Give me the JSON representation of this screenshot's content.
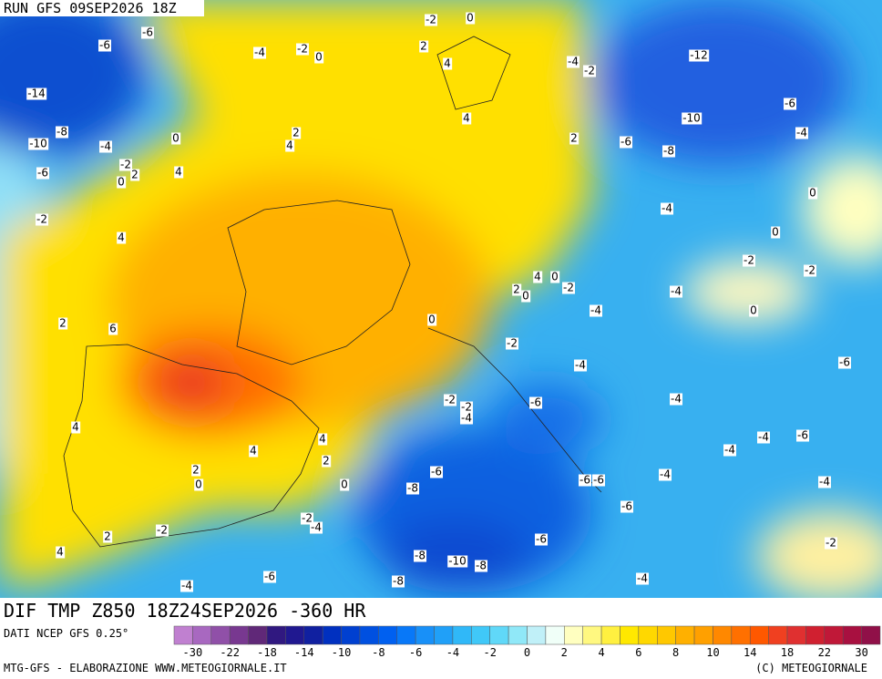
{
  "header": {
    "run": "RUN GFS 09SEP2026 18Z"
  },
  "map": {
    "labels": [
      -2,
      0,
      -6,
      -6,
      -4,
      -2,
      0,
      2,
      4,
      -4,
      -2,
      -12,
      -14,
      -10,
      -6,
      -4,
      -8,
      -10,
      -4,
      0,
      2,
      4,
      4,
      2,
      -6,
      -8,
      -2,
      2,
      0,
      4,
      -6,
      0,
      -4,
      -2,
      4,
      0,
      -2,
      -2,
      4,
      0,
      2,
      0,
      -2,
      -4,
      0,
      -4,
      2,
      0,
      6,
      -2,
      -6,
      -4,
      -2,
      -2,
      -4,
      -6,
      -4,
      4,
      4,
      -4,
      -4,
      -6,
      4,
      2,
      -6,
      2,
      0,
      0,
      -8,
      -6,
      -6,
      -4,
      -4,
      -6,
      -2,
      -4,
      -2,
      2,
      -6,
      -2,
      4,
      -8,
      -10,
      -8,
      -6,
      -4,
      -8,
      -4
    ]
  },
  "footer": {
    "field": "DIF TMP Z850 18Z24SEP2026 -360 HR",
    "source": "DATI NCEP GFS 0.25°",
    "credit": "MTG-GFS - ELABORAZIONE WWW.METEOGIORNALE.IT",
    "copyright": "(C) METEOGIORNALE"
  },
  "colorbar": {
    "colors": [
      "#c080d0",
      "#a868c0",
      "#9050a8",
      "#783890",
      "#602878",
      "#301880",
      "#201890",
      "#1020a0",
      "#0030c0",
      "#0040d0",
      "#0050e0",
      "#0060f0",
      "#0878f8",
      "#1890f8",
      "#20a0f8",
      "#30b8f8",
      "#40c8f8",
      "#60d8f8",
      "#90e8f8",
      "#c0f0f8",
      "#f0fff8",
      "#ffffc0",
      "#fff880",
      "#fff040",
      "#ffe800",
      "#ffd800",
      "#ffc800",
      "#ffb000",
      "#ffa000",
      "#ff8800",
      "#ff7000",
      "#ff5800",
      "#f04020",
      "#e03030",
      "#d02030",
      "#c01838",
      "#a81040",
      "#901048"
    ],
    "ticks": [
      -30,
      -22,
      -18,
      -14,
      -10,
      -8,
      -6,
      -4,
      -2,
      0,
      2,
      4,
      6,
      8,
      10,
      14,
      18,
      22,
      30
    ]
  }
}
